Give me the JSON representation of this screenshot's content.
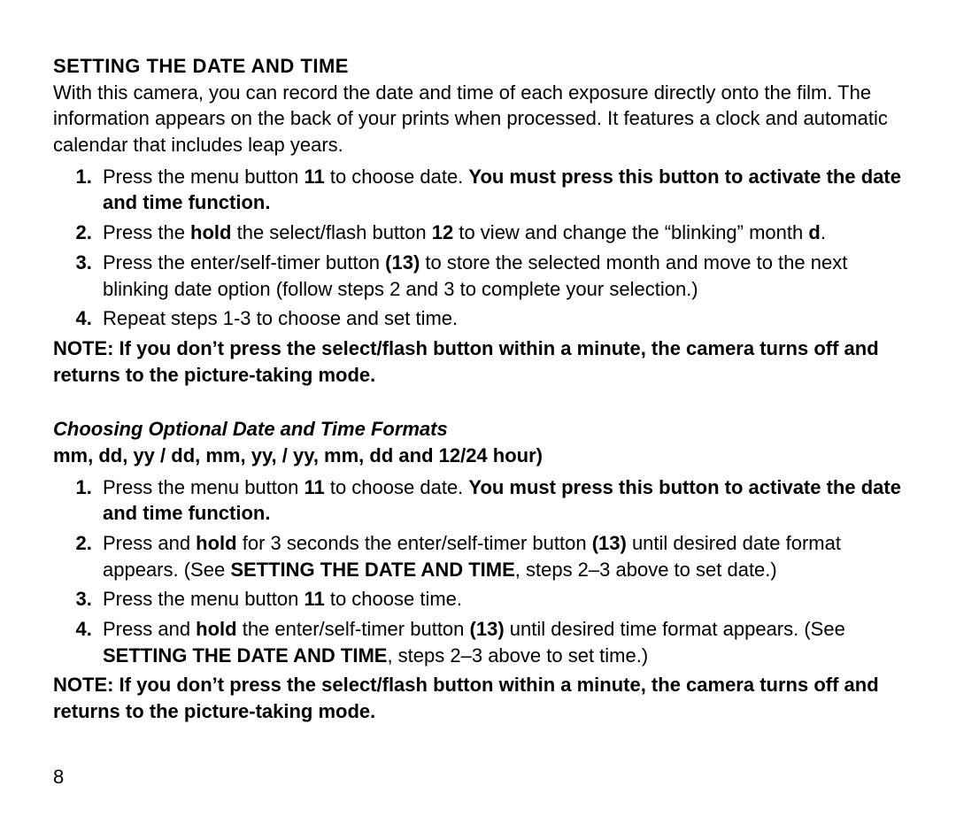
{
  "section1": {
    "heading": "SETTING THE DATE AND TIME",
    "intro": "With this camera, you can record the date and time of each exposure directly onto the film. The information appears on the back of your prints when processed. It features a clock and automatic calendar that includes leap years.",
    "step1_a": "Press the menu button ",
    "step1_b": "11",
    "step1_c": " to choose date. ",
    "step1_d": "You must press this button to activate the date and time function.",
    "step2_a": "Press the ",
    "step2_b": "hold",
    "step2_c": " the select/flash button ",
    "step2_d": "12",
    "step2_e": " to view and change the “blinking” month ",
    "step2_f": "d",
    "step2_g": ".",
    "step3_a": "Press the enter/self-timer button ",
    "step3_b": "(13)",
    "step3_c": " to store the selected month and move to the next blinking date option (follow steps 2 and 3 to complete your selection.)",
    "step4": "Repeat steps 1-3 to choose and set time.",
    "note": "NOTE: If you don’t press the select/flash button within a minute, the camera turns off and returns to the picture-taking mode."
  },
  "section2": {
    "subheading": "Choosing Optional Date and Time Formats",
    "formats": "mm, dd, yy / dd, mm, yy, / yy, mm, dd and 12/24 hour)",
    "step1_a": "Press the menu button ",
    "step1_b": "11",
    "step1_c": " to choose date. ",
    "step1_d": "You must press this button to activate the date and time function.",
    "step2_a": "Press and ",
    "step2_b": "hold",
    "step2_c": " for 3 seconds the enter/self-timer button ",
    "step2_d": "(13)",
    "step2_e": " until desired date format appears. (See ",
    "step2_f": "SETTING THE DATE AND TIME",
    "step2_g": ", steps 2–3 above to set date.)",
    "step3_a": "Press the menu button ",
    "step3_b": "11",
    "step3_c": " to choose time.",
    "step4_a": "Press and ",
    "step4_b": "hold",
    "step4_c": " the enter/self-timer button ",
    "step4_d": "(13)",
    "step4_e": " until desired time format appears. (See ",
    "step4_f": "SETTING THE DATE AND TIME",
    "step4_g": ", steps 2–3 above to set time.)",
    "note": "NOTE: If you don’t press the select/flash button within a minute, the camera turns off and returns to the picture-taking mode."
  },
  "pagenum": "8"
}
